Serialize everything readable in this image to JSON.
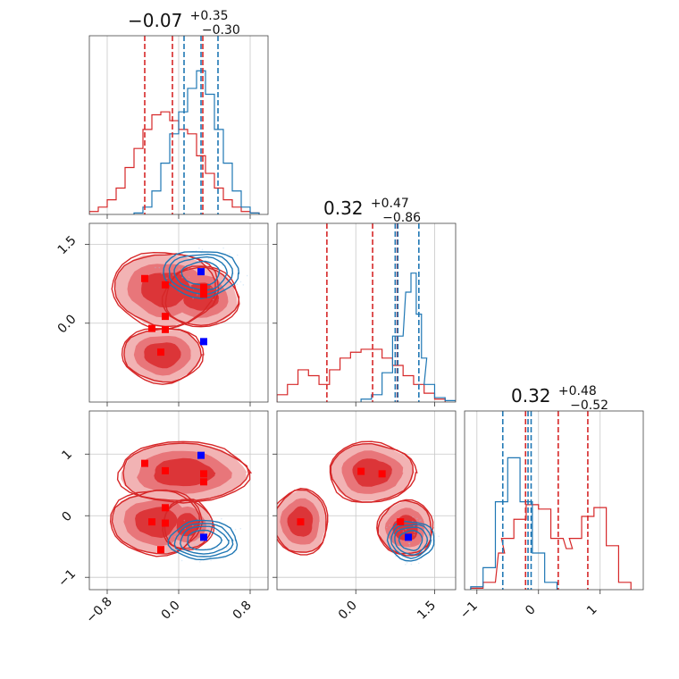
{
  "colors": {
    "red": "#d62728",
    "blue": "#1f77b4",
    "red_fill_light": "#f2b3b4",
    "red_fill_mid": "#e8767a",
    "red_fill_dark": "#dc3538",
    "grid": "#c8c8c8"
  },
  "chart_data": {
    "type": "corner",
    "parameters": 3,
    "grid": true,
    "titles": [
      {
        "median": "−0.07",
        "upper": "+0.35",
        "lower": "−0.30"
      },
      {
        "median": "0.32",
        "upper": "+0.47",
        "lower": "−0.86"
      },
      {
        "median": "0.32",
        "upper": "+0.48",
        "lower": "−0.52"
      }
    ],
    "axes": [
      {
        "range": [
          -1.0,
          1.0
        ],
        "ticks": [
          -0.8,
          0.0,
          0.8
        ],
        "tick_labels": [
          "−0.8",
          "0.0",
          "0.8"
        ]
      },
      {
        "range": [
          -1.5,
          1.9
        ],
        "ticks": [
          0.0,
          1.5
        ],
        "tick_labels": [
          "0.0",
          "1.5"
        ],
        "y_ticks": [
          0.0,
          1.5
        ],
        "y_tick_labels": [
          "0.0",
          "1.5"
        ]
      },
      {
        "range": [
          -1.2,
          1.7
        ],
        "ticks": [
          -1,
          0,
          1
        ],
        "tick_labels": [
          "−1",
          "0",
          "1"
        ]
      }
    ],
    "series": [
      {
        "color_key": "red",
        "quantiles": [
          [
            -0.38,
            -0.07,
            0.27
          ],
          [
            -0.55,
            0.32,
            0.79
          ],
          [
            -0.21,
            0.32,
            0.8
          ]
        ]
      },
      {
        "color_key": "blue",
        "quantiles": [
          [
            0.06,
            0.25,
            0.44
          ],
          [
            0.75,
            0.8,
            1.2
          ],
          [
            -0.58,
            -0.17,
            -0.12
          ]
        ]
      }
    ],
    "histograms": [
      {
        "red": [
          [
            -0.95,
            0.02
          ],
          [
            -0.85,
            0.05
          ],
          [
            -0.75,
            0.1
          ],
          [
            -0.65,
            0.18
          ],
          [
            -0.55,
            0.32
          ],
          [
            -0.45,
            0.45
          ],
          [
            -0.35,
            0.58
          ],
          [
            -0.25,
            0.68
          ],
          [
            -0.15,
            0.7
          ],
          [
            -0.05,
            0.64
          ],
          [
            0.05,
            0.58
          ],
          [
            0.15,
            0.55
          ],
          [
            0.25,
            0.4
          ],
          [
            0.35,
            0.28
          ],
          [
            0.45,
            0.18
          ],
          [
            0.55,
            0.1
          ],
          [
            0.65,
            0.05
          ],
          [
            0.75,
            0.02
          ],
          [
            0.85,
            0.01
          ]
        ],
        "blue": [
          [
            -0.45,
            0.01
          ],
          [
            -0.35,
            0.05
          ],
          [
            -0.25,
            0.16
          ],
          [
            -0.15,
            0.35
          ],
          [
            -0.05,
            0.55
          ],
          [
            0.05,
            0.7
          ],
          [
            0.15,
            0.86
          ],
          [
            0.25,
            0.98
          ],
          [
            0.35,
            0.82
          ],
          [
            0.45,
            0.58
          ],
          [
            0.55,
            0.35
          ],
          [
            0.65,
            0.16
          ],
          [
            0.75,
            0.05
          ],
          [
            0.85,
            0.01
          ]
        ]
      },
      {
        "red": [
          [
            -1.4,
            0.05
          ],
          [
            -1.2,
            0.12
          ],
          [
            -1.0,
            0.22
          ],
          [
            -0.8,
            0.18
          ],
          [
            -0.6,
            0.12
          ],
          [
            -0.4,
            0.22
          ],
          [
            -0.2,
            0.3
          ],
          [
            0.0,
            0.34
          ],
          [
            0.2,
            0.36
          ],
          [
            0.4,
            0.36
          ],
          [
            0.6,
            0.3
          ],
          [
            0.8,
            0.25
          ],
          [
            1.0,
            0.18
          ],
          [
            1.2,
            0.12
          ],
          [
            1.4,
            0.06
          ],
          [
            1.6,
            0.02
          ]
        ],
        "blue": [
          [
            0.2,
            0.02
          ],
          [
            0.4,
            0.05
          ],
          [
            0.6,
            0.2
          ],
          [
            0.8,
            0.45
          ],
          [
            1.0,
            0.75
          ],
          [
            1.1,
            0.88
          ],
          [
            1.2,
            0.6
          ],
          [
            1.3,
            0.3
          ],
          [
            1.4,
            0.12
          ],
          [
            1.6,
            0.03
          ],
          [
            1.8,
            0.01
          ]
        ]
      },
      {
        "red": [
          [
            -1.0,
            0.01
          ],
          [
            -0.8,
            0.05
          ],
          [
            -0.6,
            0.25
          ],
          [
            -0.5,
            0.35
          ],
          [
            -0.3,
            0.48
          ],
          [
            -0.1,
            0.58
          ],
          [
            0.1,
            0.55
          ],
          [
            0.3,
            0.35
          ],
          [
            0.5,
            0.28
          ],
          [
            0.6,
            0.35
          ],
          [
            0.8,
            0.5
          ],
          [
            1.0,
            0.56
          ],
          [
            1.2,
            0.3
          ],
          [
            1.4,
            0.05
          ]
        ],
        "blue": [
          [
            -1.0,
            0.02
          ],
          [
            -0.8,
            0.15
          ],
          [
            -0.6,
            0.6
          ],
          [
            -0.4,
            0.9
          ],
          [
            -0.2,
            0.6
          ],
          [
            0.0,
            0.25
          ],
          [
            0.2,
            0.05
          ]
        ]
      }
    ],
    "modes": {
      "red": [
        [
          -0.38,
          0.85
        ],
        [
          -0.15,
          0.13
        ],
        [
          0.28,
          0.55
        ],
        [
          -0.2,
          -0.55
        ],
        [
          -0.15,
          0.73
        ],
        [
          0.28,
          0.68
        ],
        [
          -0.3,
          -0.1
        ],
        [
          -0.15,
          -0.12
        ]
      ],
      "blue": [
        [
          0.25,
          0.98
        ],
        [
          0.28,
          -0.35
        ]
      ]
    }
  }
}
